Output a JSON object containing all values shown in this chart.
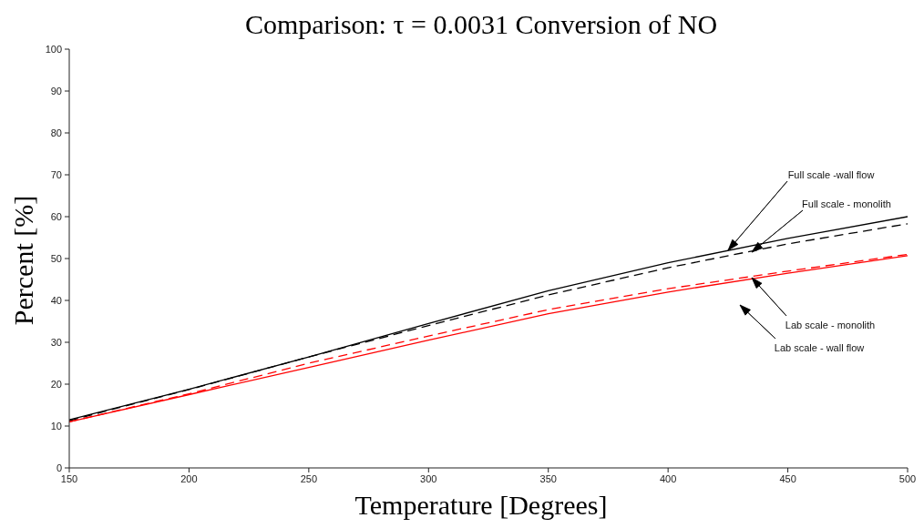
{
  "chart_data": {
    "type": "line",
    "title": "Comparison: τ = 0.0031 Conversion of NO",
    "xlabel": "Temperature [Degrees]",
    "ylabel": "Percent [%]",
    "x": [
      150,
      200,
      250,
      300,
      350,
      400,
      450,
      500
    ],
    "series": [
      {
        "color": "#000000",
        "line_style": "solid",
        "values": [
          11.5,
          18.8,
          26.5,
          34.5,
          42.3,
          49,
          54.8,
          60
        ]
      },
      {
        "color": "#000000",
        "line_style": "dashed",
        "values": [
          11.3,
          18.7,
          26.5,
          34,
          41.3,
          47.8,
          53.5,
          58.3
        ]
      },
      {
        "color": "#ff0000",
        "line_style": "dashed",
        "values": [
          11,
          17.7,
          25,
          31.5,
          37.8,
          42.8,
          47,
          51
        ]
      },
      {
        "color": "#ff0000",
        "line_style": "solid",
        "values": [
          11,
          17.5,
          24,
          30.5,
          36.8,
          42,
          46.5,
          50.7
        ]
      }
    ],
    "xlim": [
      150,
      500
    ],
    "xticks": [
      150,
      200,
      250,
      300,
      350,
      400,
      450,
      500
    ],
    "ylim": [
      0,
      100
    ],
    "yticks": [
      0,
      10,
      20,
      30,
      40,
      50,
      60,
      70,
      80,
      90,
      100
    ],
    "grid": false,
    "legend": false,
    "marker": "none",
    "annotations": [
      "Full scale -wall flow",
      "Full scale - monolith",
      "Lab scale - monolith",
      "Lab scale - wall flow"
    ]
  }
}
